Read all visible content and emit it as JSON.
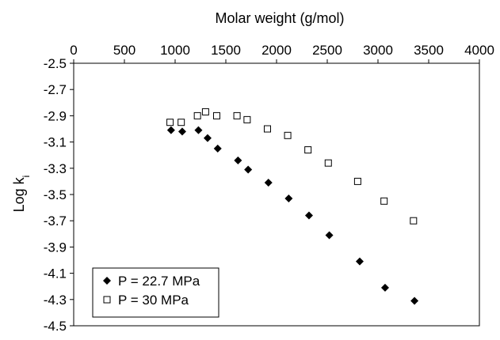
{
  "chart_data": {
    "type": "scatter",
    "x_axis": {
      "label": "Molar weight  (g/mol)",
      "position": "top",
      "range": [
        0,
        4000
      ],
      "ticks": [
        "0",
        "500",
        "1000",
        "1500",
        "2000",
        "2500",
        "3000",
        "3500",
        "4000"
      ]
    },
    "y_axis": {
      "label_main": "Log k",
      "label_sub": "i",
      "range": [
        -4.5,
        -2.5
      ],
      "ticks": [
        "-2.5",
        "-2.7",
        "-2.9",
        "-3.1",
        "-3.3",
        "-3.5",
        "-3.7",
        "-3.9",
        "-4.1",
        "-4.3",
        "-4.5"
      ]
    },
    "grid": false,
    "legend_position": "bottom-left",
    "series": [
      {
        "name": "P = 22.7 MPa",
        "marker": "filled-diamond",
        "color": "#000000",
        "points": [
          {
            "x": 960,
            "y": -3.01
          },
          {
            "x": 1070,
            "y": -3.02
          },
          {
            "x": 1230,
            "y": -3.01
          },
          {
            "x": 1320,
            "y": -3.07
          },
          {
            "x": 1420,
            "y": -3.15
          },
          {
            "x": 1620,
            "y": -3.24
          },
          {
            "x": 1720,
            "y": -3.31
          },
          {
            "x": 1920,
            "y": -3.41
          },
          {
            "x": 2120,
            "y": -3.53
          },
          {
            "x": 2320,
            "y": -3.66
          },
          {
            "x": 2520,
            "y": -3.81
          },
          {
            "x": 2820,
            "y": -4.01
          },
          {
            "x": 3070,
            "y": -4.21
          },
          {
            "x": 3360,
            "y": -4.31
          }
        ]
      },
      {
        "name": "P = 30 MPa",
        "marker": "open-square",
        "color": "#000000",
        "points": [
          {
            "x": 950,
            "y": -2.95
          },
          {
            "x": 1060,
            "y": -2.95
          },
          {
            "x": 1220,
            "y": -2.9
          },
          {
            "x": 1300,
            "y": -2.87
          },
          {
            "x": 1410,
            "y": -2.9
          },
          {
            "x": 1610,
            "y": -2.9
          },
          {
            "x": 1710,
            "y": -2.93
          },
          {
            "x": 1910,
            "y": -3.0
          },
          {
            "x": 2110,
            "y": -3.05
          },
          {
            "x": 2310,
            "y": -3.16
          },
          {
            "x": 2510,
            "y": -3.26
          },
          {
            "x": 2800,
            "y": -3.4
          },
          {
            "x": 3060,
            "y": -3.55
          },
          {
            "x": 3350,
            "y": -3.7
          }
        ]
      }
    ]
  }
}
